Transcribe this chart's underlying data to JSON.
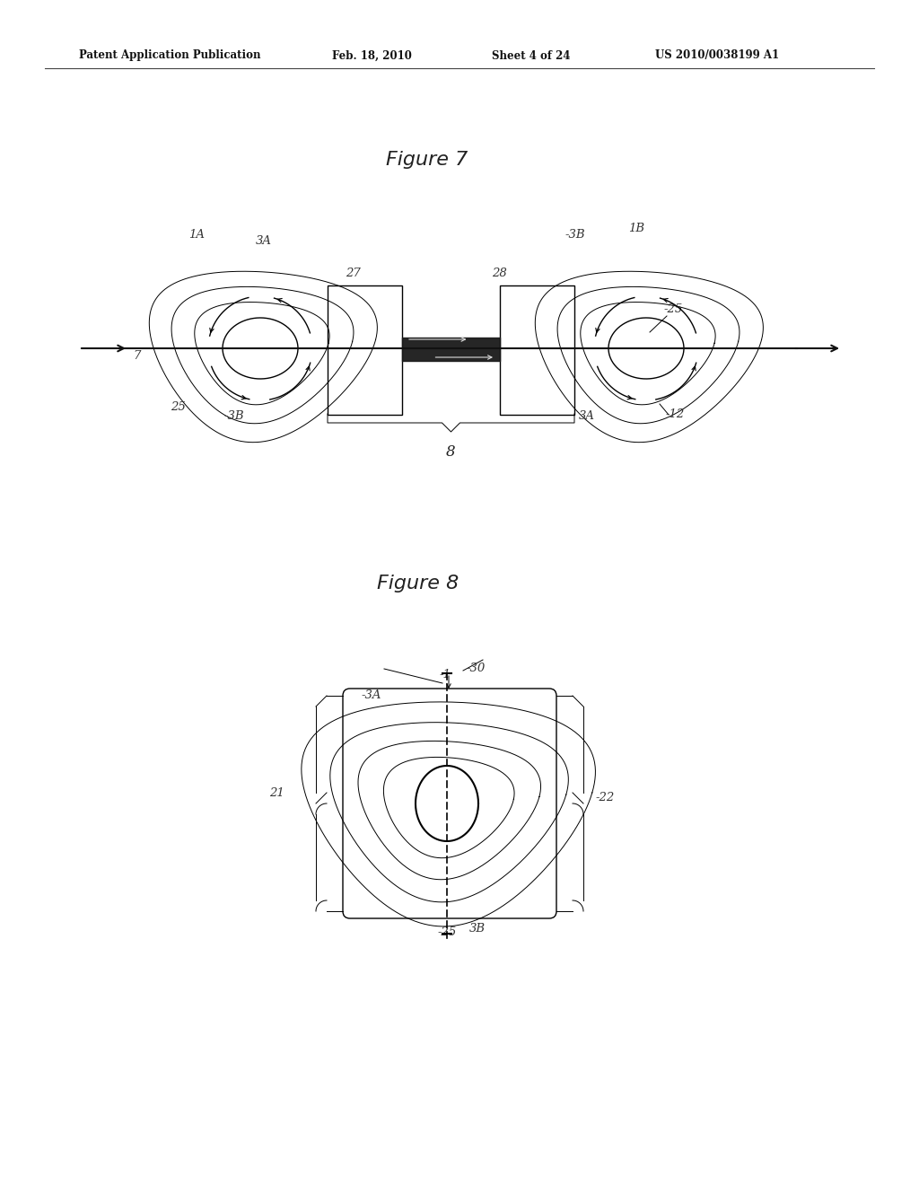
{
  "bg_color": "#ffffff",
  "header_text": "Patent Application Publication",
  "header_date": "Feb. 18, 2010",
  "header_sheet": "Sheet 4 of 24",
  "header_patent": "US 2010/0038199 A1",
  "fig7_title": "Figure 7",
  "fig8_title": "Figure 8",
  "lc": "#000000",
  "lc_gray": "#888888"
}
